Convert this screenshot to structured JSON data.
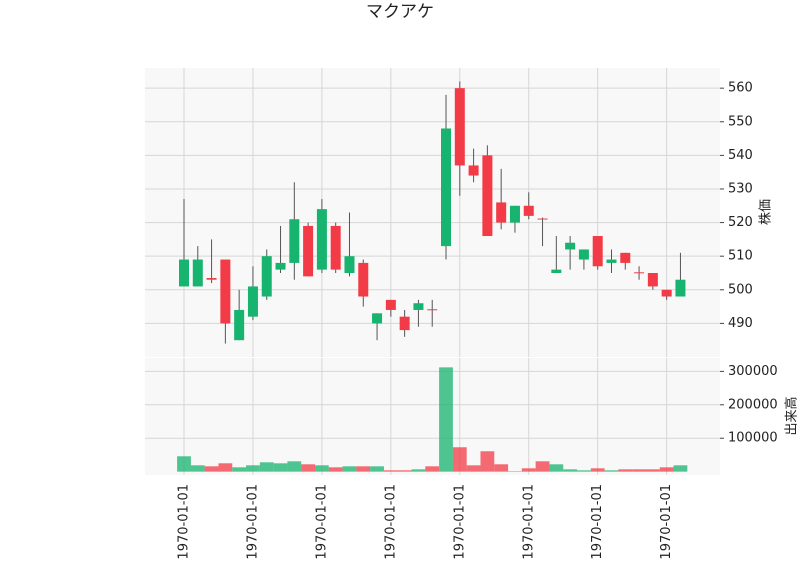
{
  "chart_data": {
    "type": "candlestick",
    "title": "マクアケ",
    "ylabel": "株価",
    "volume_label": "出来高",
    "categories": [
      "1970-01-01",
      null,
      null,
      null,
      null,
      "1970-01-01",
      null,
      null,
      null,
      null,
      "1970-01-01",
      null,
      null,
      null,
      null,
      "1970-01-01",
      null,
      null,
      null,
      null,
      "1970-01-01",
      null,
      null,
      null,
      null,
      "1970-01-01",
      null,
      null,
      null,
      null,
      "1970-01-01",
      null,
      null,
      null,
      null,
      "1970-01-01",
      null
    ],
    "open": [
      501,
      501,
      503.5,
      509,
      485,
      492,
      498,
      506,
      508,
      519,
      506,
      519,
      505,
      508,
      490,
      497,
      492,
      494,
      494.2,
      513,
      560,
      537,
      540,
      526,
      520,
      525,
      521.2,
      505,
      512,
      509,
      516,
      508,
      511,
      505.2,
      505,
      500,
      498
    ],
    "high": [
      527,
      513,
      515,
      509,
      500,
      507,
      512,
      519,
      532,
      520,
      527,
      520,
      523,
      509,
      493,
      497,
      494,
      497,
      497,
      558,
      562,
      542,
      543,
      536,
      525,
      529,
      521.5,
      516,
      516,
      512,
      516,
      512,
      511,
      507,
      505,
      500,
      511
    ],
    "low": [
      501,
      501,
      502,
      484,
      485,
      491,
      497,
      505,
      503,
      504,
      505,
      505,
      504,
      495,
      485,
      492,
      486,
      489,
      489,
      509,
      528,
      532,
      516,
      518,
      517,
      521,
      513,
      505,
      506,
      506,
      506,
      505,
      506,
      503,
      500,
      497,
      498
    ],
    "close": [
      509,
      509,
      503,
      490,
      494,
      501,
      510,
      508,
      521,
      504,
      524,
      506,
      510,
      498,
      493,
      494,
      488,
      496,
      494,
      548,
      537,
      534,
      516,
      520,
      525,
      522,
      521,
      506,
      514,
      512,
      507,
      509,
      508,
      505,
      501,
      498,
      503
    ],
    "volume": [
      46000,
      19000,
      16000,
      25000,
      13000,
      19000,
      28000,
      25000,
      31000,
      22000,
      19000,
      13000,
      16000,
      16000,
      16000,
      4000,
      4000,
      7000,
      16000,
      312000,
      73000,
      19000,
      61000,
      22000,
      1500,
      10000,
      31000,
      22000,
      7000,
      4000,
      10000,
      4000,
      7000,
      7000,
      7000,
      13000,
      19000
    ],
    "ylim": [
      480,
      566
    ],
    "yticks": [
      490,
      500,
      510,
      520,
      530,
      540,
      550,
      560
    ],
    "volume_ylim": [
      -10000,
      340000
    ],
    "volume_yticks": [
      100000,
      200000,
      300000
    ],
    "up_color": "#16b46e",
    "down_color": "#f23b46",
    "grid": true
  }
}
